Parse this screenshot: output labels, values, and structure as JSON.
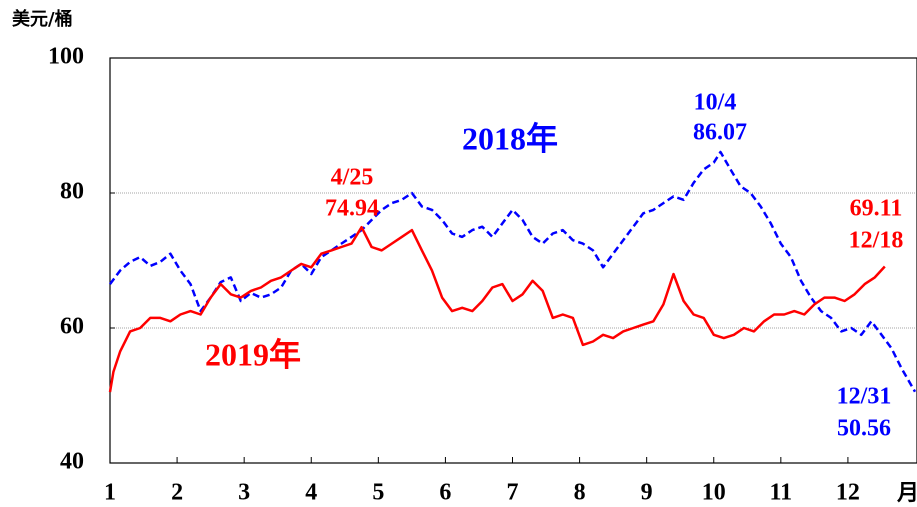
{
  "chart_data": {
    "type": "line",
    "ylabel": "美元/桶",
    "xlabel": "月",
    "xlim": [
      1,
      13
    ],
    "ylim": [
      40,
      100
    ],
    "xticks": [
      1,
      2,
      3,
      4,
      5,
      6,
      7,
      8,
      9,
      10,
      11,
      12
    ],
    "yticks": [
      40,
      60,
      80,
      100
    ],
    "grid": true,
    "series": [
      {
        "name": "2018年",
        "color": "#0000ff",
        "dash": true,
        "x": [
          1.0,
          1.15,
          1.3,
          1.45,
          1.6,
          1.75,
          1.9,
          2.05,
          2.2,
          2.35,
          2.5,
          2.65,
          2.8,
          2.95,
          3.1,
          3.25,
          3.4,
          3.55,
          3.7,
          3.85,
          4.0,
          4.15,
          4.3,
          4.45,
          4.6,
          4.75,
          4.9,
          5.05,
          5.2,
          5.35,
          5.5,
          5.65,
          5.8,
          5.95,
          6.1,
          6.25,
          6.4,
          6.55,
          6.7,
          6.85,
          7.0,
          7.15,
          7.3,
          7.45,
          7.6,
          7.75,
          7.9,
          8.05,
          8.2,
          8.35,
          8.5,
          8.65,
          8.8,
          8.95,
          9.1,
          9.25,
          9.4,
          9.55,
          9.7,
          9.85,
          10.0,
          10.1,
          10.25,
          10.4,
          10.55,
          10.7,
          10.85,
          11.0,
          11.15,
          11.3,
          11.45,
          11.6,
          11.75,
          11.9,
          12.05,
          12.2,
          12.35,
          12.5,
          12.65,
          12.8,
          13.0
        ],
        "values": [
          66.5,
          68.5,
          69.8,
          70.5,
          69.2,
          69.8,
          71.0,
          68.5,
          66.5,
          62.5,
          64.5,
          66.8,
          67.5,
          64.0,
          65.2,
          64.5,
          65.0,
          66.0,
          68.5,
          69.5,
          68.0,
          70.5,
          71.5,
          72.5,
          73.5,
          74.5,
          76.0,
          77.5,
          78.5,
          79.0,
          80.0,
          78.0,
          77.5,
          76.0,
          74.0,
          73.5,
          74.5,
          75.0,
          73.5,
          75.5,
          77.5,
          76.0,
          73.5,
          72.5,
          74.0,
          74.5,
          73.0,
          72.5,
          71.5,
          69.0,
          71.0,
          73.0,
          75.0,
          77.0,
          77.5,
          78.5,
          79.5,
          79.0,
          81.5,
          83.5,
          84.5,
          86.07,
          83.5,
          81.0,
          80.0,
          78.0,
          75.5,
          72.5,
          70.5,
          67.0,
          64.5,
          62.5,
          61.5,
          59.5,
          60.0,
          59.0,
          61.0,
          59.0,
          57.0,
          54.0,
          50.56
        ]
      },
      {
        "name": "2019年",
        "color": "#ff0000",
        "dash": false,
        "x": [
          1.0,
          1.05,
          1.15,
          1.3,
          1.45,
          1.6,
          1.75,
          1.9,
          2.05,
          2.2,
          2.35,
          2.5,
          2.65,
          2.8,
          2.95,
          3.1,
          3.25,
          3.4,
          3.55,
          3.7,
          3.85,
          4.0,
          4.15,
          4.3,
          4.45,
          4.6,
          4.75,
          4.9,
          5.05,
          5.2,
          5.35,
          5.5,
          5.65,
          5.8,
          5.95,
          6.1,
          6.25,
          6.4,
          6.55,
          6.7,
          6.85,
          7.0,
          7.15,
          7.3,
          7.45,
          7.6,
          7.75,
          7.9,
          8.05,
          8.2,
          8.35,
          8.5,
          8.65,
          8.8,
          8.95,
          9.1,
          9.25,
          9.4,
          9.55,
          9.7,
          9.85,
          10.0,
          10.15,
          10.3,
          10.45,
          10.6,
          10.75,
          10.9,
          11.05,
          11.2,
          11.35,
          11.5,
          11.65,
          11.8,
          11.95,
          12.1,
          12.25,
          12.4,
          12.55
        ],
        "values": [
          50.5,
          53.5,
          56.5,
          59.5,
          60.0,
          61.5,
          61.5,
          61.0,
          62.0,
          62.5,
          62.0,
          64.5,
          66.5,
          65.0,
          64.5,
          65.5,
          66.0,
          67.0,
          67.5,
          68.5,
          69.5,
          69.0,
          71.0,
          71.5,
          72.0,
          72.5,
          74.94,
          72.0,
          71.5,
          72.5,
          73.5,
          74.5,
          71.5,
          68.5,
          64.5,
          62.5,
          63.0,
          62.5,
          64.0,
          66.0,
          66.5,
          64.0,
          65.0,
          67.0,
          65.5,
          61.5,
          62.0,
          61.5,
          57.5,
          58.0,
          59.0,
          58.5,
          59.5,
          60.0,
          60.5,
          61.0,
          63.5,
          68.0,
          64.0,
          62.0,
          61.5,
          59.0,
          58.5,
          59.0,
          60.0,
          59.5,
          61.0,
          62.0,
          62.0,
          62.5,
          62.0,
          63.5,
          64.5,
          64.5,
          64.0,
          65.0,
          66.5,
          67.5,
          69.11
        ]
      }
    ],
    "annotations": [
      {
        "text": "10/4",
        "value": "86.07"
      },
      {
        "text": "4/25",
        "value": "74.94"
      },
      {
        "text": "12/18",
        "value": "69.11"
      },
      {
        "text": "12/31",
        "value": "50.56"
      }
    ]
  }
}
